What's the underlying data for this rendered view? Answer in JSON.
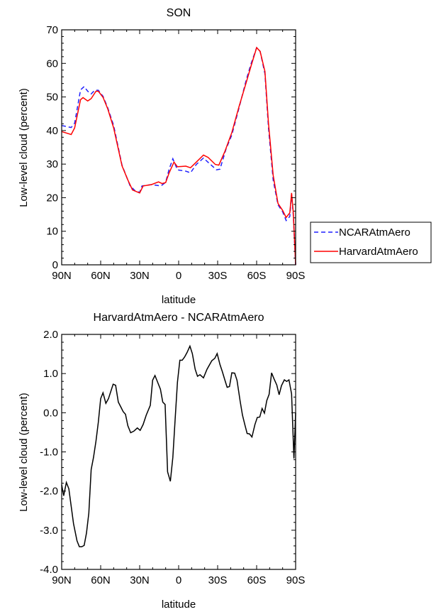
{
  "chart_data": [
    {
      "type": "line",
      "title": "SON",
      "xlabel": "latitude",
      "ylabel": "Low-level cloud (percent)",
      "xlim": [
        90,
        -90
      ],
      "ylim": [
        0,
        70
      ],
      "xticks": [
        90,
        60,
        30,
        0,
        -30,
        -60,
        -90
      ],
      "xtick_labels": [
        "90N",
        "60N",
        "30N",
        "0",
        "30S",
        "60S",
        "90S"
      ],
      "yticks": [
        0,
        10,
        20,
        30,
        40,
        50,
        60,
        70
      ],
      "ytick_labels": [
        "0",
        "10",
        "20",
        "30",
        "40",
        "50",
        "60",
        "70"
      ],
      "grid": false,
      "legend_position": "outside-bottom-right",
      "series": [
        {
          "name": "NCARAtmAero",
          "color": "#1f1fff",
          "style": "dashed",
          "x": [
            90,
            82.7,
            80,
            75.5,
            72.7,
            70,
            67.3,
            64.5,
            61.8,
            58.2,
            54.5,
            50,
            43.6,
            37.3,
            33.6,
            30,
            28.2,
            20.9,
            13.6,
            10,
            7.3,
            4.5,
            0.9,
            -5.5,
            -9.1,
            -13.6,
            -19.1,
            -23.6,
            -29.1,
            -31.8,
            -36.4,
            -40.9,
            -46.4,
            -51.8,
            -55.5,
            -60,
            -62.7,
            -66.4,
            -69.1,
            -72.7,
            -76.4,
            -80,
            -82.7,
            -85.5,
            -86.9,
            -88.2,
            -90
          ],
          "values": [
            41.5,
            40.9,
            42.2,
            52.1,
            53.1,
            51.7,
            50.9,
            52.0,
            52.0,
            50.2,
            46.7,
            41.5,
            29.7,
            23.5,
            22.1,
            21.6,
            23.5,
            23.9,
            23.5,
            24.6,
            28.5,
            31.6,
            28.3,
            27.9,
            27.4,
            29.9,
            31.8,
            30.2,
            28.3,
            28.5,
            34.4,
            38.7,
            46.7,
            54.8,
            59.7,
            64.7,
            63.6,
            56.9,
            40.8,
            25.3,
            17.9,
            15.8,
            13.2,
            14.4,
            21.1,
            14.8,
            0
          ]
        },
        {
          "name": "HarvardAtmAero",
          "color": "#ff0000",
          "style": "solid",
          "x": [
            90,
            82.7,
            80,
            75.5,
            73.6,
            70,
            67.3,
            63.6,
            61.8,
            58.2,
            54.5,
            50,
            43.6,
            39.1,
            35.5,
            30,
            27.3,
            20.9,
            15.5,
            12.7,
            10,
            7.3,
            3.6,
            0.9,
            -5.5,
            -9.1,
            -13.6,
            -19.1,
            -22.7,
            -28.2,
            -30.9,
            -35.5,
            -40.9,
            -46.4,
            -51.8,
            -55.5,
            -60,
            -62.7,
            -66.4,
            -69.1,
            -72.7,
            -76.4,
            -80,
            -82.7,
            -85.5,
            -86.9,
            -88.2,
            -90
          ],
          "values": [
            39.7,
            38.8,
            40.8,
            49.2,
            49.8,
            48.8,
            49.5,
            51.7,
            51.7,
            49.9,
            46.4,
            40.8,
            29.5,
            25.3,
            22.3,
            21.4,
            23.5,
            23.9,
            24.7,
            24.2,
            24.5,
            27.4,
            30.6,
            29.2,
            29.4,
            28.9,
            30.6,
            32.7,
            32.0,
            29.9,
            29.7,
            33.7,
            39.4,
            47.1,
            54.1,
            59.0,
            64.7,
            63.6,
            57.6,
            42.2,
            26.7,
            18.3,
            16.2,
            14.1,
            15.5,
            21.4,
            15.5,
            0
          ]
        }
      ]
    },
    {
      "type": "line",
      "title": "HarvardAtmAero - NCARAtmAero",
      "xlabel": "latitude",
      "ylabel": "Low-level cloud (percent)",
      "xlim": [
        90,
        -90
      ],
      "ylim": [
        -4.0,
        2.0
      ],
      "xticks": [
        90,
        60,
        30,
        0,
        -30,
        -60,
        -90
      ],
      "xtick_labels": [
        "90N",
        "60N",
        "30N",
        "0",
        "30S",
        "60S",
        "90S"
      ],
      "yticks": [
        -4,
        -3,
        -2,
        -1,
        0,
        1,
        2
      ],
      "ytick_labels": [
        "-4.0",
        "-3.0",
        "-2.0",
        "-1.0",
        "0.0",
        "1.0",
        "2.0"
      ],
      "grid": false,
      "series": [
        {
          "name": "HarvardAtmAero - NCARAtmAero",
          "color": "#000000",
          "style": "solid",
          "x": [
            90,
            88.5,
            86.4,
            84.5,
            80.9,
            78.2,
            76.4,
            74.5,
            72.7,
            70.9,
            69.1,
            67.3,
            65.5,
            63.6,
            61.8,
            60,
            58.2,
            56,
            54,
            50.4,
            48.5,
            46.4,
            44.5,
            42.7,
            40.9,
            39.1,
            36.9,
            34.5,
            31.8,
            29.6,
            27.3,
            24.9,
            21.8,
            20,
            18.2,
            15.8,
            14,
            12.2,
            10.4,
            8.5,
            6.4,
            4.5,
            2.7,
            0.9,
            -0.9,
            -2.7,
            -4.5,
            -6.5,
            -8.7,
            -10.5,
            -12.7,
            -14.5,
            -16.4,
            -19.1,
            -21.8,
            -25.5,
            -27.8,
            -29.6,
            -31.8,
            -33.6,
            -35.5,
            -37.3,
            -39.1,
            -40.9,
            -43.1,
            -44.9,
            -47.3,
            -49.1,
            -50.9,
            -52.7,
            -54.5,
            -56.4,
            -58.7,
            -60.5,
            -62.4,
            -64.2,
            -66,
            -67.8,
            -69.6,
            -71.5,
            -73.3,
            -75.5,
            -77.3,
            -79.1,
            -81.3,
            -83.1,
            -84.9,
            -86.9,
            -88.7,
            -90
          ],
          "values": [
            -1.84,
            -2.12,
            -1.78,
            -1.94,
            -2.83,
            -3.27,
            -3.42,
            -3.42,
            -3.39,
            -3.07,
            -2.56,
            -1.45,
            -1.14,
            -0.72,
            -0.24,
            0.36,
            0.51,
            0.24,
            0.36,
            0.73,
            0.7,
            0.27,
            0.15,
            0.03,
            -0.04,
            -0.33,
            -0.51,
            -0.47,
            -0.39,
            -0.45,
            -0.3,
            -0.06,
            0.19,
            0.83,
            0.95,
            0.75,
            0.6,
            0.27,
            0.21,
            -1.51,
            -1.75,
            -1.14,
            -0.18,
            0.78,
            1.34,
            1.34,
            1.42,
            1.54,
            1.7,
            1.51,
            1.11,
            0.93,
            0.97,
            0.89,
            1.11,
            1.33,
            1.39,
            1.51,
            1.23,
            1.05,
            0.84,
            0.65,
            0.67,
            1.02,
            1.01,
            0.83,
            0.3,
            -0.06,
            -0.3,
            -0.53,
            -0.54,
            -0.62,
            -0.3,
            -0.12,
            -0.11,
            0.11,
            -0.01,
            0.31,
            0.47,
            1.02,
            0.87,
            0.71,
            0.46,
            0.69,
            0.84,
            0.8,
            0.84,
            0.48,
            -1.17,
            0.0
          ]
        }
      ]
    }
  ]
}
